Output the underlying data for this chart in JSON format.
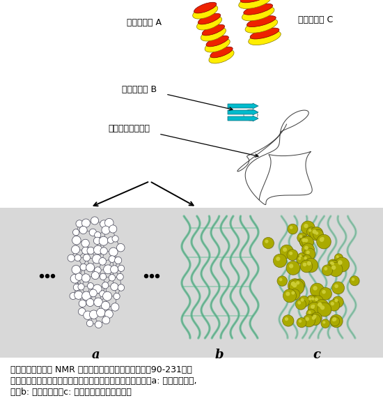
{
  "bg_color": "#ffffff",
  "bottom_bg": "#d8d8d8",
  "caption_line1": "上図：プリオンの NMR 構造（ハムスター・プリオン：90-231）。",
  "caption_line2": "下図：疎水性クラスター断片が形成するオリゴマーの構造。a: ペプチド主鎖,",
  "caption_line3": "　　b: リボン表示，c: メチル基を黄色で示す。",
  "label_helix_a": "ヘリックス A",
  "label_helix_b": "ヘリックス B",
  "label_helix_c": "ヘリックス C",
  "label_hydrophobic": "疎水性クラスター",
  "label_a": "a",
  "label_b": "b",
  "label_c": "c",
  "dots": "・・・",
  "helix_red": "#ee2200",
  "helix_yellow": "#ffee00",
  "helix_cyan": "#00bbcc",
  "green_strand": "#6bbf99",
  "green_strand_dark": "#3a8866",
  "yellow_methyl": "#aaaa00",
  "yellow_methyl_hi": "#cccc33",
  "font_size_caption": 9,
  "font_size_label": 9,
  "font_size_abc": 13
}
